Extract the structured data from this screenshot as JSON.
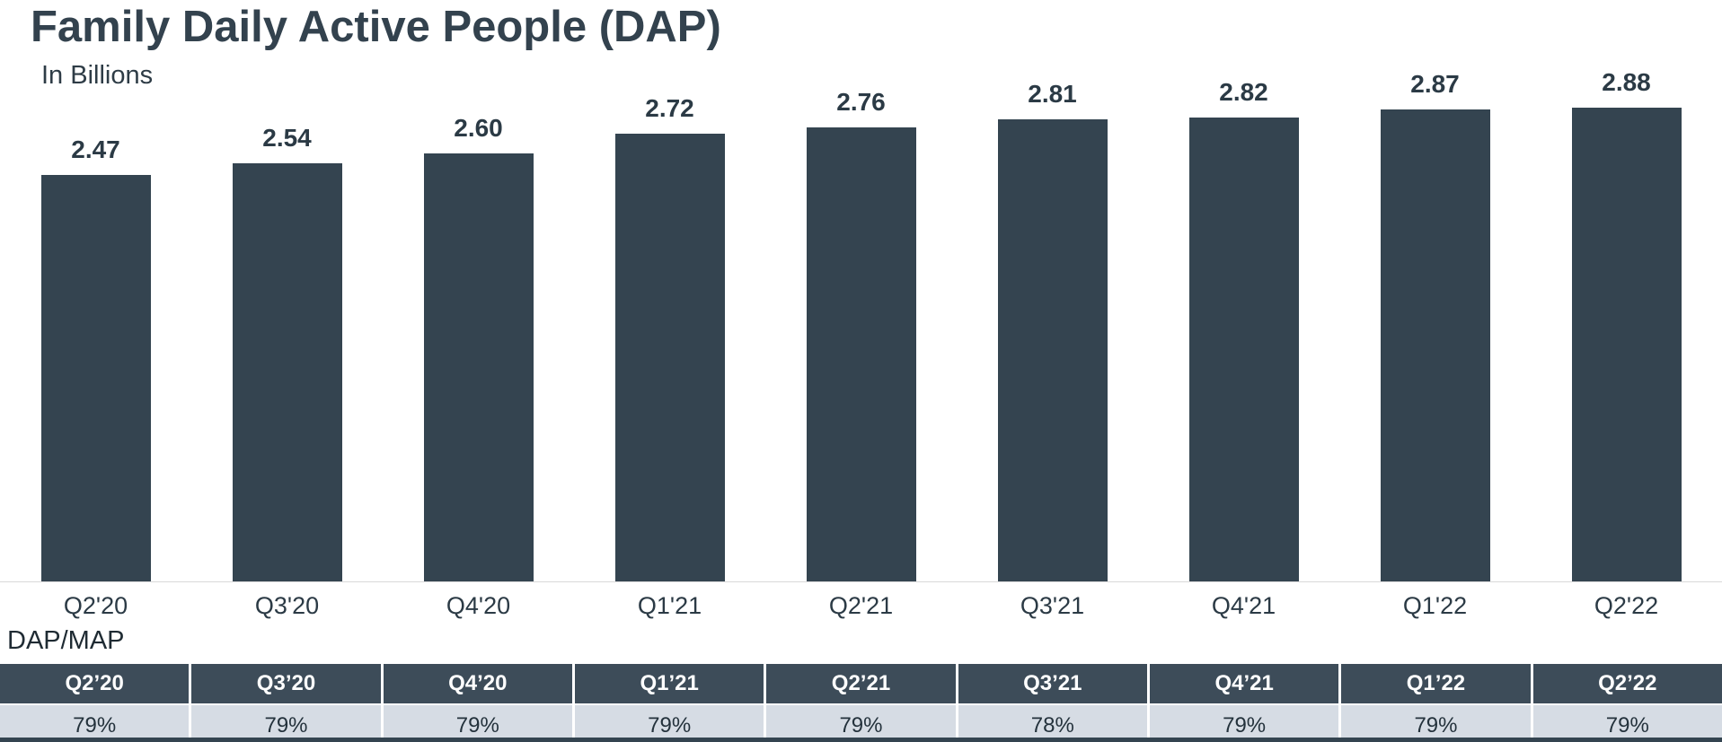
{
  "chart_data": {
    "type": "bar",
    "title": "Family Daily Active People (DAP)",
    "subtitle": "In Billions",
    "categories": [
      "Q2'20",
      "Q3'20",
      "Q4'20",
      "Q1'21",
      "Q2'21",
      "Q3'21",
      "Q4'21",
      "Q1'22",
      "Q2'22"
    ],
    "values": [
      2.47,
      2.54,
      2.6,
      2.72,
      2.76,
      2.81,
      2.82,
      2.87,
      2.88
    ],
    "value_labels": [
      "2.47",
      "2.54",
      "2.60",
      "2.72",
      "2.76",
      "2.81",
      "2.82",
      "2.87",
      "2.88"
    ],
    "xlabel": "",
    "ylabel": "",
    "ylim": [
      0,
      3.0
    ],
    "grid": false,
    "legend": "none"
  },
  "dap_map_table": {
    "label": "DAP/MAP",
    "headers": [
      "Q2’20",
      "Q3’20",
      "Q4’20",
      "Q1’21",
      "Q2’21",
      "Q3’21",
      "Q4’21",
      "Q1’22",
      "Q2’22"
    ],
    "values": [
      "79%",
      "79%",
      "79%",
      "79%",
      "79%",
      "78%",
      "79%",
      "79%",
      "79%"
    ]
  },
  "colors": {
    "bar": "#344450",
    "table_header_bg": "#3D4C59",
    "table_row_bg": "#D6DCE4",
    "title_text": "#33424E",
    "bottom_strip": "#344450"
  }
}
